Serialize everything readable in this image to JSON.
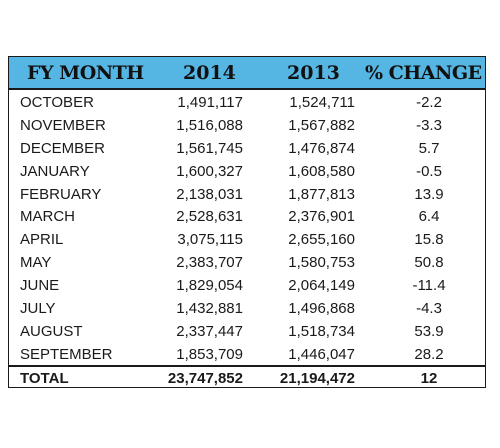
{
  "table": {
    "header": {
      "month": "FY MONTH",
      "y2014": "2014",
      "y2013": "2013",
      "change": "% CHANGE"
    },
    "rows": [
      {
        "month": "OCTOBER",
        "y2014": "1,491,117",
        "y2013": "1,524,711",
        "change": "-2.2"
      },
      {
        "month": "NOVEMBER",
        "y2014": "1,516,088",
        "y2013": "1,567,882",
        "change": "-3.3"
      },
      {
        "month": "DECEMBER",
        "y2014": "1,561,745",
        "y2013": "1,476,874",
        "change": "5.7"
      },
      {
        "month": "JANUARY",
        "y2014": "1,600,327",
        "y2013": "1,608,580",
        "change": "-0.5"
      },
      {
        "month": "FEBRUARY",
        "y2014": "2,138,031",
        "y2013": "1,877,813",
        "change": "13.9"
      },
      {
        "month": "MARCH",
        "y2014": "2,528,631",
        "y2013": "2,376,901",
        "change": "6.4"
      },
      {
        "month": "APRIL",
        "y2014": "3,075,115",
        "y2013": "2,655,160",
        "change": "15.8"
      },
      {
        "month": "MAY",
        "y2014": "2,383,707",
        "y2013": "1,580,753",
        "change": "50.8"
      },
      {
        "month": "JUNE",
        "y2014": "1,829,054",
        "y2013": "2,064,149",
        "change": "-11.4"
      },
      {
        "month": "JULY",
        "y2014": "1,432,881",
        "y2013": "1,496,868",
        "change": "-4.3"
      },
      {
        "month": "AUGUST",
        "y2014": "2,337,447",
        "y2013": "1,518,734",
        "change": "53.9"
      },
      {
        "month": "SEPTEMBER",
        "y2014": "1,853,709",
        "y2013": "1,446,047",
        "change": "28.2"
      }
    ],
    "total": {
      "month": "TOTAL",
      "y2014": "23,747,852",
      "y2013": "21,194,472",
      "change": "12"
    }
  },
  "colors": {
    "header_background": "#55b6e3",
    "border": "#1a1a1a",
    "text": "#1a1a1a"
  }
}
